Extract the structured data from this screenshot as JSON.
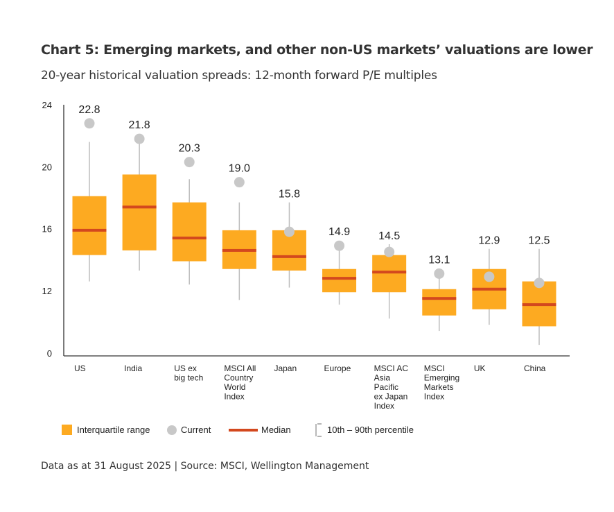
{
  "chart_data": {
    "type": "boxplot",
    "title": "Chart 5: Emerging markets, and other non-US markets’ valuations are lower",
    "subtitle": "20-year historical valuation spreads: 12-month forward P/E multiples",
    "xlabel": "",
    "ylabel": "",
    "y_ticks": [
      0,
      12,
      16,
      20,
      24
    ],
    "y_tick_labels": [
      "0",
      "12",
      "16",
      "20",
      "24"
    ],
    "y_axis_break": "between 0 and 12",
    "ylim": [
      0,
      24
    ],
    "grid": false,
    "categories": [
      [
        "US"
      ],
      [
        "India"
      ],
      [
        "US ex",
        "big tech"
      ],
      [
        "MSCI All",
        "Country",
        "World",
        "Index"
      ],
      [
        "Japan"
      ],
      [
        "Europe"
      ],
      [
        "MSCI AC",
        "Asia",
        "Pacific",
        "ex Japan",
        "Index"
      ],
      [
        "MSCI",
        "Emerging",
        "Markets",
        "Index"
      ],
      [
        "UK"
      ],
      [
        "China"
      ]
    ],
    "p10": [
      12.6,
      13.3,
      12.4,
      11.4,
      12.2,
      11.1,
      10.2,
      9.4,
      9.8,
      8.5
    ],
    "q1": [
      14.3,
      14.6,
      13.9,
      13.4,
      13.3,
      11.9,
      11.9,
      10.4,
      10.8,
      9.7
    ],
    "median": [
      15.9,
      17.4,
      15.4,
      14.6,
      14.2,
      12.8,
      13.2,
      11.5,
      12.1,
      11.1
    ],
    "q3": [
      18.1,
      19.5,
      17.7,
      15.9,
      15.9,
      13.4,
      14.3,
      12.1,
      13.4,
      12.6
    ],
    "p90": [
      21.6,
      21.6,
      19.2,
      17.7,
      17.7,
      14.6,
      15.0,
      12.8,
      14.7,
      14.7
    ],
    "current": [
      22.8,
      21.8,
      20.3,
      19.0,
      15.8,
      14.9,
      14.5,
      13.1,
      12.9,
      12.5
    ],
    "current_labels": [
      "22.8",
      "21.8",
      "20.3",
      "19.0",
      "15.8",
      "14.9",
      "14.5",
      "13.1",
      "12.9",
      "12.5"
    ],
    "legend": {
      "placement": "bottom",
      "items": [
        "Interquartile range",
        "Current",
        "Median",
        "10th – 90th percentile"
      ]
    },
    "colors": {
      "box": "#FDAA21",
      "median": "#D3481E",
      "current": "#C8C8C8",
      "whisker": "#BDBDBD",
      "axis": "#333333"
    }
  },
  "footnote": "Data as at 31 August 2025  |  Source: MSCI, Wellington Management"
}
